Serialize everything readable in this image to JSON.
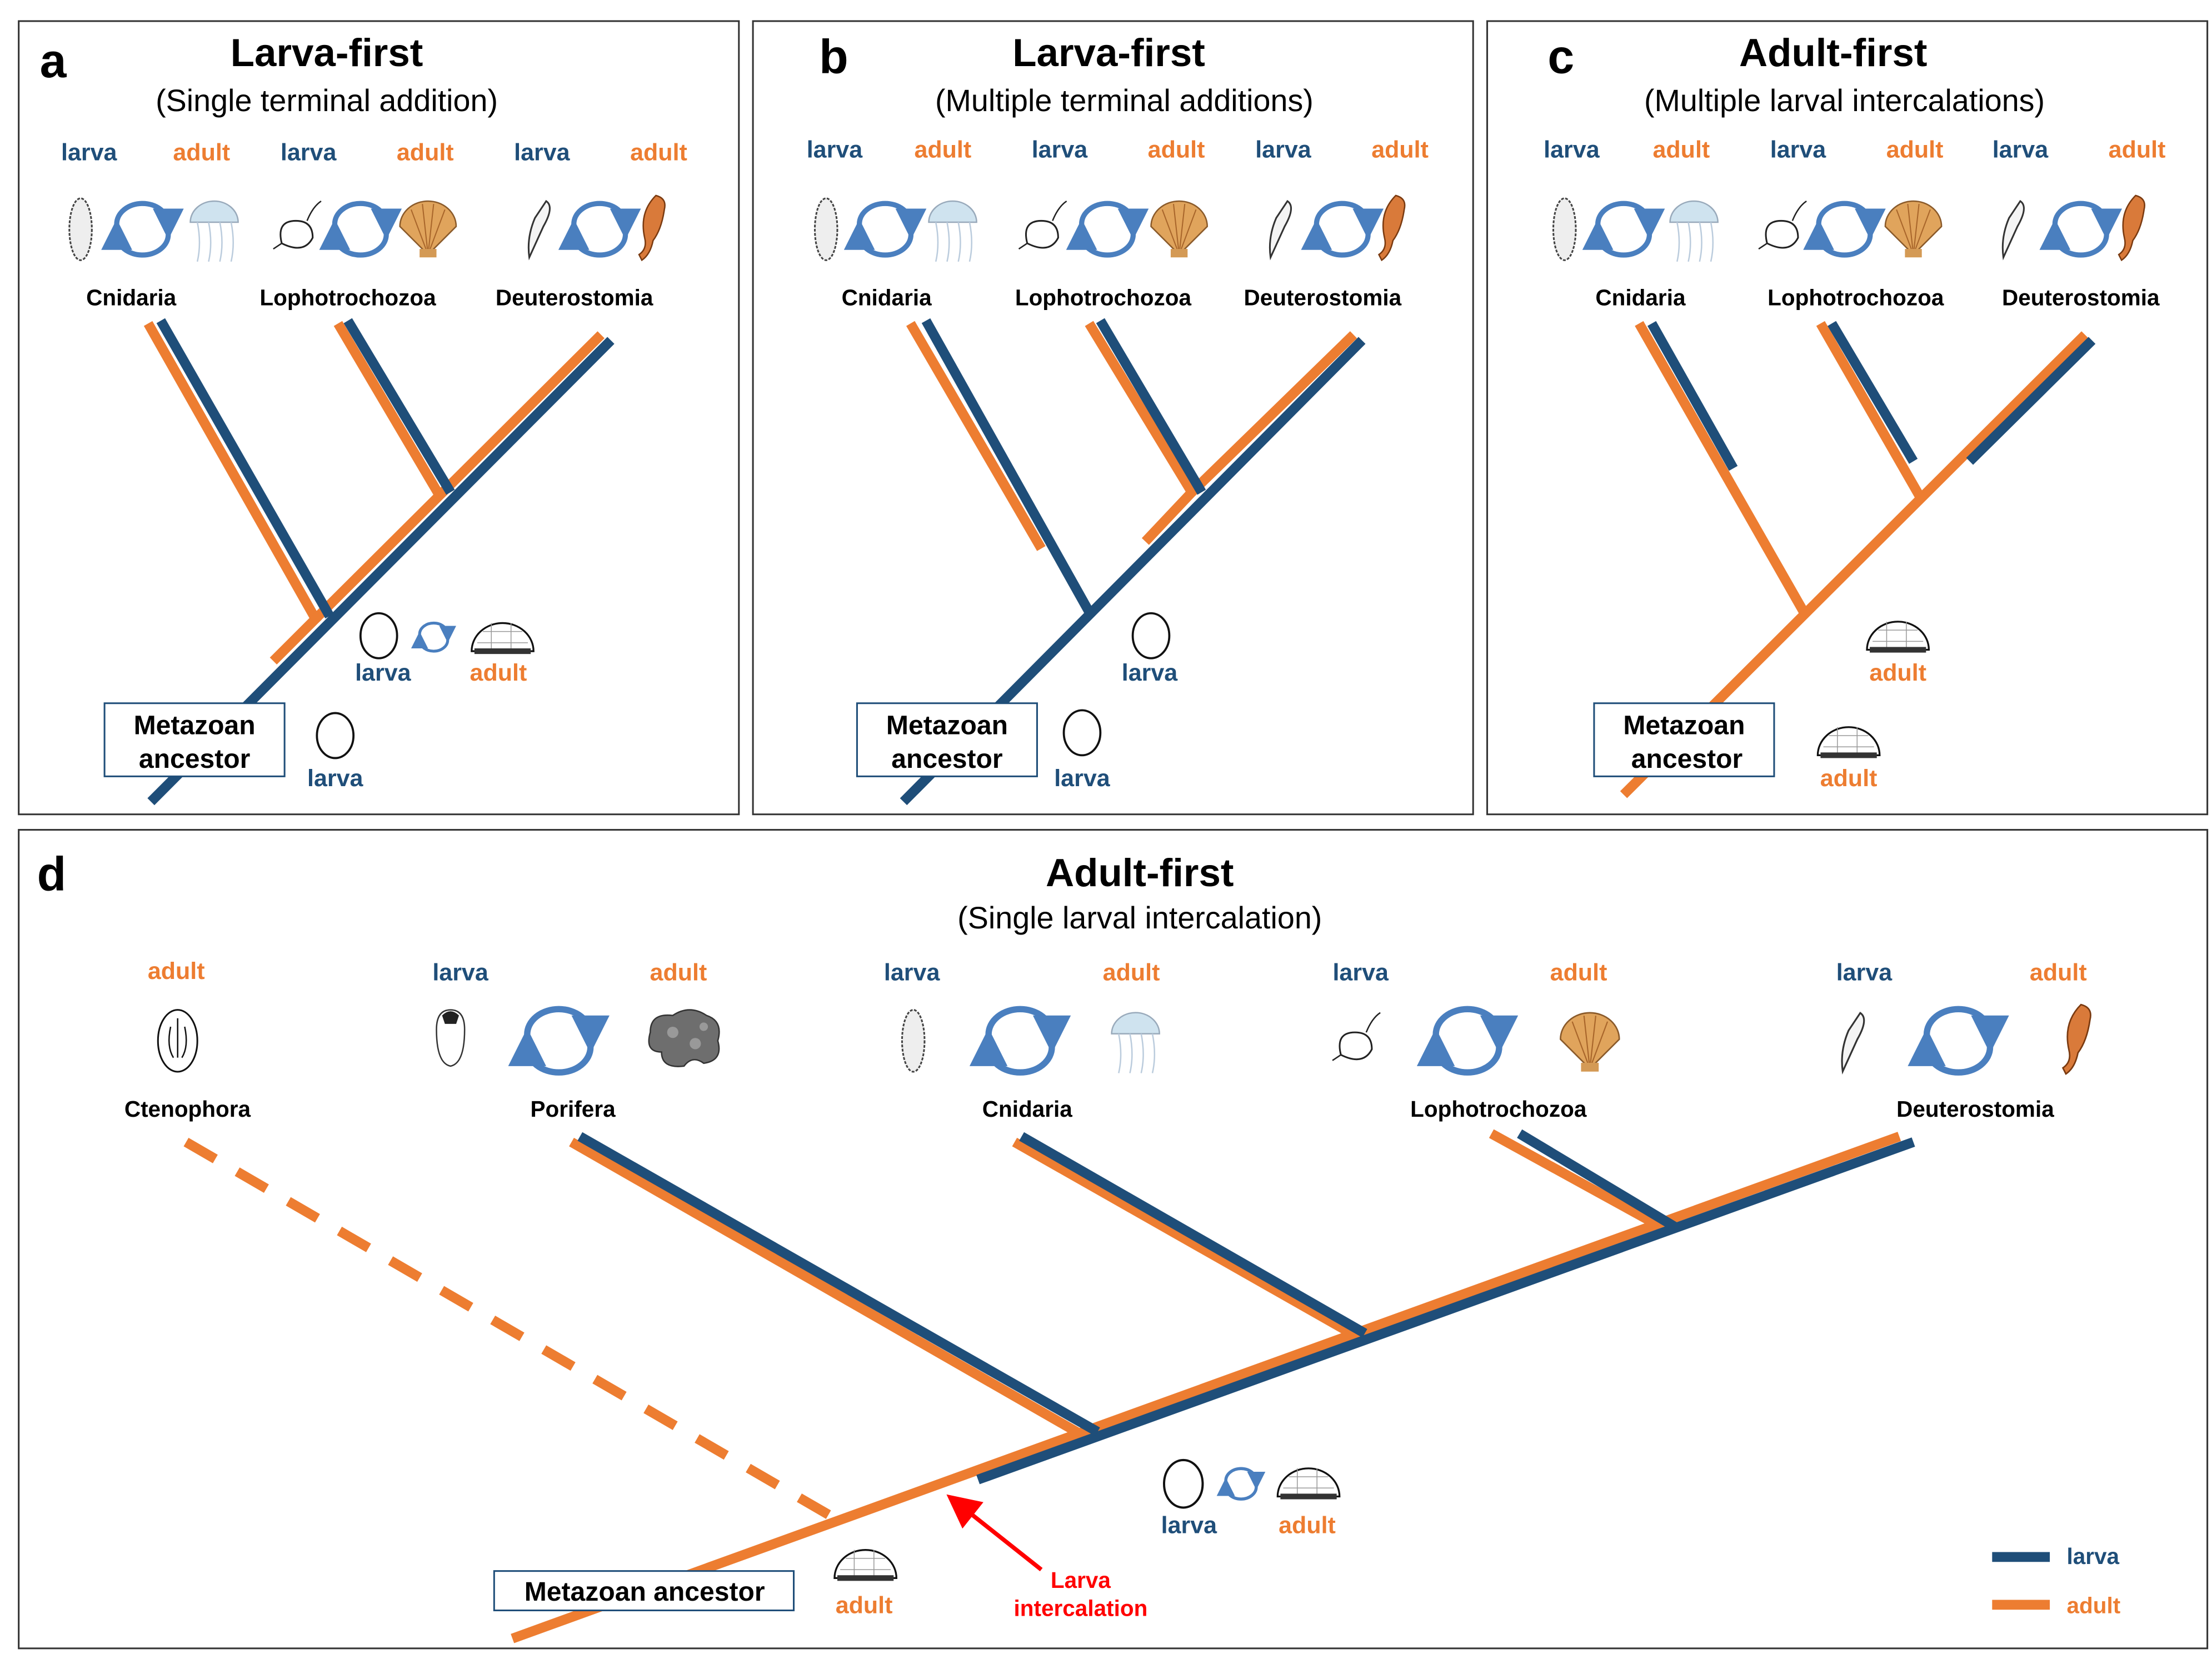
{
  "colors": {
    "larva": "#1f4e79",
    "adult": "#ed7d31",
    "cycle_arrow": "#4a7fbf",
    "intercalation": "#ff0000"
  },
  "stage_labels": {
    "larva": "larva",
    "adult": "adult"
  },
  "panels": {
    "a": {
      "letter": "a",
      "title": "Larva-first",
      "subtitle": "(Single terminal addition)",
      "taxa": [
        "Cnidaria",
        "Lophotrochozoa",
        "Deuterostomia"
      ],
      "ancestor": [
        "Metazoan",
        "ancestor"
      ]
    },
    "b": {
      "letter": "b",
      "title": "Larva-first",
      "subtitle": "(Multiple terminal additions)",
      "taxa": [
        "Cnidaria",
        "Lophotrochozoa",
        "Deuterostomia"
      ],
      "ancestor": [
        "Metazoan",
        "ancestor"
      ]
    },
    "c": {
      "letter": "c",
      "title": "Adult-first",
      "subtitle": "(Multiple larval intercalations)",
      "taxa": [
        "Cnidaria",
        "Lophotrochozoa",
        "Deuterostomia"
      ],
      "ancestor": [
        "Metazoan",
        "ancestor"
      ]
    },
    "d": {
      "letter": "d",
      "title": "Adult-first",
      "subtitle": "(Single larval intercalation)",
      "taxa": [
        "Ctenophora",
        "Porifera",
        "Cnidaria",
        "Lophotrochozoa",
        "Deuterostomia"
      ],
      "ancestor": "Metazoan ancestor",
      "annotation": [
        "Larva",
        "intercalation"
      ]
    }
  },
  "legend": {
    "larva": "larva",
    "adult": "adult"
  }
}
